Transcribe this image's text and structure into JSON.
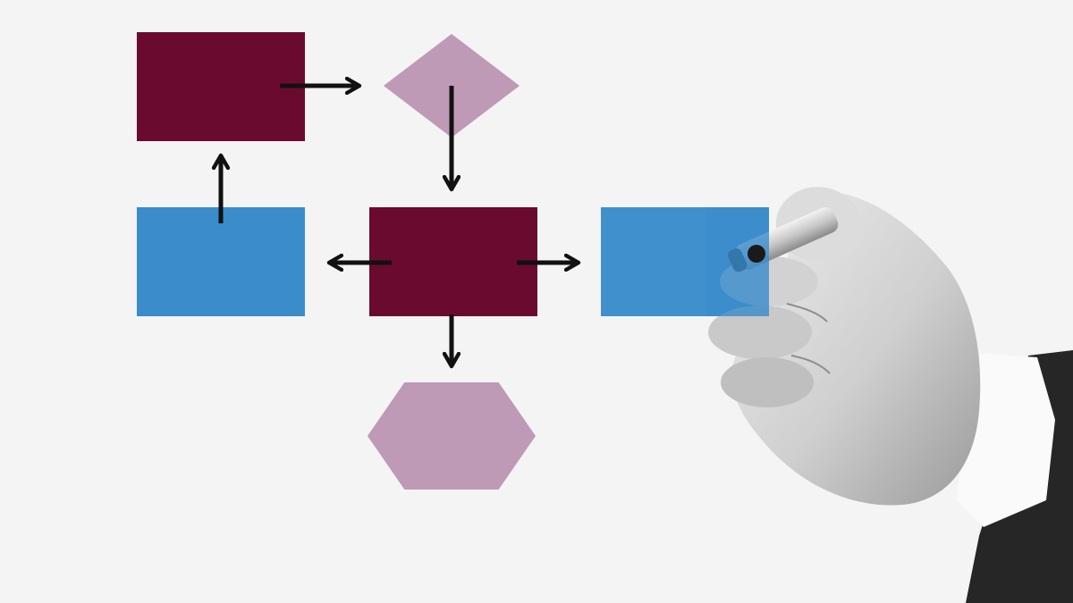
{
  "colors": {
    "background": "#f4f4f4",
    "process_dark": "#6b0a2f",
    "process_blue": "#3a8ccb",
    "decision_light": "#be9ab6",
    "arrow": "#111111",
    "skin_light": "#e4e4e4",
    "skin_mid": "#bdbdbd",
    "skin_shadow": "#8c8c8c",
    "cuff": "#fafafa",
    "sleeve": "#262626",
    "marker_body": "#d9d9d9",
    "marker_tip": "#1a1a1a"
  },
  "diagram": {
    "shapes": [
      {
        "id": "process-top-left",
        "kind": "rectangle",
        "fill": "process_dark"
      },
      {
        "id": "decision-diamond",
        "kind": "diamond",
        "fill": "decision_light"
      },
      {
        "id": "process-left",
        "kind": "rectangle",
        "fill": "process_blue"
      },
      {
        "id": "process-center",
        "kind": "rectangle",
        "fill": "process_dark"
      },
      {
        "id": "process-right",
        "kind": "rectangle",
        "fill": "process_blue"
      },
      {
        "id": "terminal-hexagon",
        "kind": "hexagon",
        "fill": "decision_light"
      }
    ],
    "connectors": [
      {
        "from": "process-top-left",
        "to": "decision-diamond"
      },
      {
        "from": "decision-diamond",
        "to": "process-center"
      },
      {
        "from": "process-center",
        "to": "process-left"
      },
      {
        "from": "process-center",
        "to": "process-right"
      },
      {
        "from": "process-center",
        "to": "terminal-hexagon"
      },
      {
        "from": "process-left",
        "to": "process-top-left"
      }
    ]
  },
  "illustration": {
    "subject": "hand-holding-marker",
    "grayscale": true
  }
}
